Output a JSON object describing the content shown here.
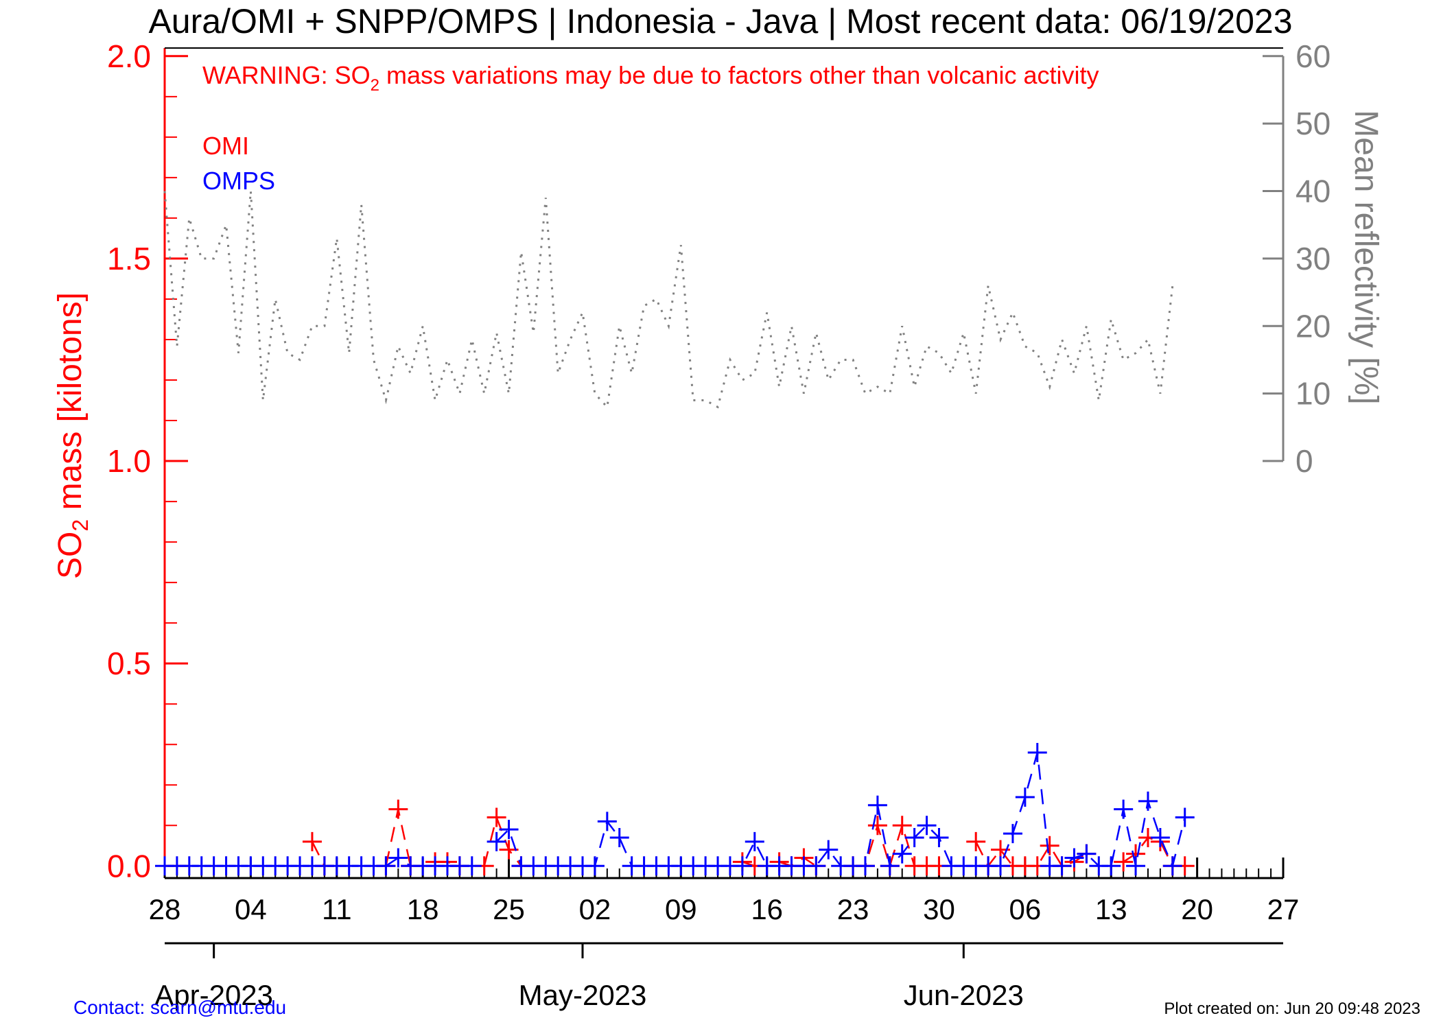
{
  "page": {
    "title": "Aura/OMI + SNPP/OMPS | Indonesia - Java | Most recent data: 06/19/2023",
    "warning_prefix": "WARNING: SO",
    "warning_sub": "2",
    "warning_suffix": " mass variations may be due to factors other than volcanic activity",
    "contact": "Contact: scarn@mtu.edu",
    "created": "Plot created on: Jun 20 09:48 2023"
  },
  "chart_data": {
    "type": "line",
    "xlim": [
      "2023-03-28",
      "2023-06-27"
    ],
    "x_ticks": [
      {
        "date": "2023-03-28",
        "label": "28"
      },
      {
        "date": "2023-04-04",
        "label": "04"
      },
      {
        "date": "2023-04-11",
        "label": "11"
      },
      {
        "date": "2023-04-18",
        "label": "18"
      },
      {
        "date": "2023-04-25",
        "label": "25"
      },
      {
        "date": "2023-05-02",
        "label": "02"
      },
      {
        "date": "2023-05-09",
        "label": "09"
      },
      {
        "date": "2023-05-16",
        "label": "16"
      },
      {
        "date": "2023-05-23",
        "label": "23"
      },
      {
        "date": "2023-05-30",
        "label": "30"
      },
      {
        "date": "2023-06-06",
        "label": "06"
      },
      {
        "date": "2023-06-13",
        "label": "13"
      },
      {
        "date": "2023-06-20",
        "label": "20"
      },
      {
        "date": "2023-06-27",
        "label": "27"
      }
    ],
    "months": [
      {
        "date": "2023-04-01",
        "label": "Apr-2023"
      },
      {
        "date": "2023-05-01",
        "label": "May-2023"
      },
      {
        "date": "2023-06-01",
        "label": "Jun-2023"
      }
    ],
    "y_left": {
      "label_prefix": "SO",
      "label_sub": "2",
      "label_suffix": " mass [kilotons]",
      "range": [
        -0.03,
        2.02
      ],
      "ticks": [
        "0.0",
        "0.5",
        "1.0",
        "1.5",
        "2.0"
      ],
      "tick_values": [
        0.0,
        0.5,
        1.0,
        1.5,
        2.0
      ],
      "minor_step": 0.1,
      "color": "#ff0000"
    },
    "y_right": {
      "label": "Mean reflectivity [%]",
      "range": [
        0,
        60
      ],
      "ticks": [
        "0",
        "10",
        "20",
        "30",
        "40",
        "50",
        "60"
      ],
      "tick_values": [
        0,
        10,
        20,
        30,
        40,
        50,
        60
      ],
      "spans_left_values": [
        1.0,
        2.0
      ],
      "color": "#808080"
    },
    "legend": [
      {
        "name": "OMI",
        "color": "#ff0000"
      },
      {
        "name": "OMPS",
        "color": "#0000ff"
      }
    ],
    "legend_position": "top-left",
    "series": [
      {
        "name": "OMI",
        "color": "#ff0000",
        "style": "dashed",
        "marker": "plus",
        "points": [
          [
            "2023-04-09",
            0.06
          ],
          [
            "2023-04-10",
            0.0
          ],
          [
            "2023-04-15",
            0.0
          ],
          [
            "2023-04-16",
            0.14
          ],
          [
            "2023-04-17",
            0.0
          ],
          [
            "2023-04-19",
            0.01
          ],
          [
            "2023-04-20",
            0.01
          ],
          [
            "2023-04-21",
            0.0
          ],
          [
            "2023-04-23",
            0.0
          ],
          [
            "2023-04-24",
            0.12
          ],
          [
            "2023-04-25",
            0.04
          ],
          [
            "2023-04-26",
            0.0
          ],
          [
            "2023-05-14",
            0.01
          ],
          [
            "2023-05-15",
            0.0
          ],
          [
            "2023-05-17",
            0.01
          ],
          [
            "2023-05-18",
            0.0
          ],
          [
            "2023-05-19",
            0.02
          ],
          [
            "2023-05-20",
            0.0
          ],
          [
            "2023-05-23",
            0.0
          ],
          [
            "2023-05-24",
            0.0
          ],
          [
            "2023-05-25",
            0.1
          ],
          [
            "2023-05-26",
            0.0
          ],
          [
            "2023-05-27",
            0.1
          ],
          [
            "2023-05-28",
            0.0
          ],
          [
            "2023-05-29",
            0.0
          ],
          [
            "2023-05-30",
            0.0
          ],
          [
            "2023-06-02",
            0.06
          ],
          [
            "2023-06-03",
            0.0
          ],
          [
            "2023-06-04",
            0.04
          ],
          [
            "2023-06-05",
            0.0
          ],
          [
            "2023-06-06",
            0.0
          ],
          [
            "2023-06-07",
            0.0
          ],
          [
            "2023-06-08",
            0.05
          ],
          [
            "2023-06-09",
            0.0
          ],
          [
            "2023-06-10",
            0.01
          ],
          [
            "2023-06-11",
            0.03
          ],
          [
            "2023-06-14",
            0.01
          ],
          [
            "2023-06-15",
            0.03
          ],
          [
            "2023-06-16",
            0.07
          ],
          [
            "2023-06-17",
            0.06
          ],
          [
            "2023-06-18",
            0.0
          ],
          [
            "2023-06-19",
            0.0
          ]
        ]
      },
      {
        "name": "OMPS",
        "color": "#0000ff",
        "style": "dashed",
        "marker": "plus",
        "points": [
          [
            "2023-03-28",
            0.0
          ],
          [
            "2023-03-29",
            0.0
          ],
          [
            "2023-03-30",
            0.0
          ],
          [
            "2023-03-31",
            0.0
          ],
          [
            "2023-04-01",
            0.0
          ],
          [
            "2023-04-02",
            0.0
          ],
          [
            "2023-04-03",
            0.0
          ],
          [
            "2023-04-04",
            0.0
          ],
          [
            "2023-04-05",
            0.0
          ],
          [
            "2023-04-06",
            0.0
          ],
          [
            "2023-04-07",
            0.0
          ],
          [
            "2023-04-08",
            0.0
          ],
          [
            "2023-04-09",
            0.0
          ],
          [
            "2023-04-10",
            0.0
          ],
          [
            "2023-04-11",
            0.0
          ],
          [
            "2023-04-12",
            0.0
          ],
          [
            "2023-04-13",
            0.0
          ],
          [
            "2023-04-14",
            0.0
          ],
          [
            "2023-04-15",
            0.0
          ],
          [
            "2023-04-16",
            0.02
          ],
          [
            "2023-04-17",
            0.0
          ],
          [
            "2023-04-18",
            0.0
          ],
          [
            "2023-04-19",
            0.0
          ],
          [
            "2023-04-20",
            0.0
          ],
          [
            "2023-04-21",
            0.0
          ],
          [
            "2023-04-22",
            0.0
          ],
          [
            "2023-04-24",
            0.06
          ],
          [
            "2023-04-25",
            0.09
          ],
          [
            "2023-04-26",
            0.0
          ],
          [
            "2023-04-27",
            0.0
          ],
          [
            "2023-04-28",
            0.0
          ],
          [
            "2023-04-29",
            0.0
          ],
          [
            "2023-04-30",
            0.0
          ],
          [
            "2023-05-01",
            0.0
          ],
          [
            "2023-05-02",
            0.0
          ],
          [
            "2023-05-03",
            0.11
          ],
          [
            "2023-05-04",
            0.07
          ],
          [
            "2023-05-05",
            0.0
          ],
          [
            "2023-05-06",
            0.0
          ],
          [
            "2023-05-07",
            0.0
          ],
          [
            "2023-05-08",
            0.0
          ],
          [
            "2023-05-09",
            0.0
          ],
          [
            "2023-05-10",
            0.0
          ],
          [
            "2023-05-11",
            0.0
          ],
          [
            "2023-05-12",
            0.0
          ],
          [
            "2023-05-13",
            0.0
          ],
          [
            "2023-05-14",
            0.0
          ],
          [
            "2023-05-15",
            0.06
          ],
          [
            "2023-05-16",
            0.0
          ],
          [
            "2023-05-17",
            0.0
          ],
          [
            "2023-05-18",
            0.0
          ],
          [
            "2023-05-19",
            0.0
          ],
          [
            "2023-05-20",
            0.0
          ],
          [
            "2023-05-21",
            0.04
          ],
          [
            "2023-05-22",
            0.0
          ],
          [
            "2023-05-23",
            0.0
          ],
          [
            "2023-05-24",
            0.0
          ],
          [
            "2023-05-25",
            0.15
          ],
          [
            "2023-05-26",
            0.0
          ],
          [
            "2023-05-27",
            0.03
          ],
          [
            "2023-05-28",
            0.07
          ],
          [
            "2023-05-29",
            0.1
          ],
          [
            "2023-05-30",
            0.07
          ],
          [
            "2023-05-31",
            0.0
          ],
          [
            "2023-06-01",
            0.0
          ],
          [
            "2023-06-02",
            0.0
          ],
          [
            "2023-06-03",
            0.0
          ],
          [
            "2023-06-04",
            0.0
          ],
          [
            "2023-06-05",
            0.08
          ],
          [
            "2023-06-06",
            0.17
          ],
          [
            "2023-06-07",
            0.28
          ],
          [
            "2023-06-08",
            0.0
          ],
          [
            "2023-06-09",
            0.0
          ],
          [
            "2023-06-10",
            0.02
          ],
          [
            "2023-06-11",
            0.03
          ],
          [
            "2023-06-12",
            0.0
          ],
          [
            "2023-06-13",
            0.0
          ],
          [
            "2023-06-14",
            0.14
          ],
          [
            "2023-06-15",
            0.0
          ],
          [
            "2023-06-16",
            0.16
          ],
          [
            "2023-06-17",
            0.07
          ],
          [
            "2023-06-18",
            0.0
          ],
          [
            "2023-06-19",
            0.12
          ]
        ]
      },
      {
        "name": "",
        "color": "#808080",
        "style": "dotted",
        "axis": "right",
        "points": [
          [
            "2023-03-28",
            40
          ],
          [
            "2023-03-29",
            17
          ],
          [
            "2023-03-30",
            36
          ],
          [
            "2023-03-31",
            30
          ],
          [
            "2023-04-01",
            30
          ],
          [
            "2023-04-02",
            35
          ],
          [
            "2023-04-03",
            16
          ],
          [
            "2023-04-04",
            40
          ],
          [
            "2023-04-05",
            9
          ],
          [
            "2023-04-06",
            24
          ],
          [
            "2023-04-07",
            16
          ],
          [
            "2023-04-08",
            15
          ],
          [
            "2023-04-09",
            20
          ],
          [
            "2023-04-10",
            20
          ],
          [
            "2023-04-11",
            33
          ],
          [
            "2023-04-12",
            16
          ],
          [
            "2023-04-13",
            38
          ],
          [
            "2023-04-14",
            15
          ],
          [
            "2023-04-15",
            9
          ],
          [
            "2023-04-16",
            17
          ],
          [
            "2023-04-17",
            13
          ],
          [
            "2023-04-18",
            20
          ],
          [
            "2023-04-19",
            9
          ],
          [
            "2023-04-20",
            15
          ],
          [
            "2023-04-21",
            10
          ],
          [
            "2023-04-22",
            18
          ],
          [
            "2023-04-23",
            10
          ],
          [
            "2023-04-24",
            19
          ],
          [
            "2023-04-25",
            10
          ],
          [
            "2023-04-26",
            31
          ],
          [
            "2023-04-27",
            19
          ],
          [
            "2023-04-28",
            39
          ],
          [
            "2023-04-29",
            13
          ],
          [
            "2023-04-30",
            18
          ],
          [
            "2023-05-01",
            22
          ],
          [
            "2023-05-02",
            10
          ],
          [
            "2023-05-03",
            8
          ],
          [
            "2023-05-04",
            20
          ],
          [
            "2023-05-05",
            13
          ],
          [
            "2023-05-06",
            23
          ],
          [
            "2023-05-07",
            24
          ],
          [
            "2023-05-08",
            20
          ],
          [
            "2023-05-09",
            32
          ],
          [
            "2023-05-10",
            9
          ],
          [
            "2023-05-11",
            9
          ],
          [
            "2023-05-12",
            8
          ],
          [
            "2023-05-13",
            15
          ],
          [
            "2023-05-14",
            12
          ],
          [
            "2023-05-15",
            13
          ],
          [
            "2023-05-16",
            22
          ],
          [
            "2023-05-17",
            11
          ],
          [
            "2023-05-18",
            20
          ],
          [
            "2023-05-19",
            10
          ],
          [
            "2023-05-20",
            19
          ],
          [
            "2023-05-21",
            12
          ],
          [
            "2023-05-22",
            15
          ],
          [
            "2023-05-23",
            15
          ],
          [
            "2023-05-24",
            10
          ],
          [
            "2023-05-25",
            11
          ],
          [
            "2023-05-26",
            10
          ],
          [
            "2023-05-27",
            20
          ],
          [
            "2023-05-28",
            11
          ],
          [
            "2023-05-29",
            17
          ],
          [
            "2023-05-30",
            16
          ],
          [
            "2023-05-31",
            13
          ],
          [
            "2023-06-01",
            19
          ],
          [
            "2023-06-02",
            10
          ],
          [
            "2023-06-03",
            26
          ],
          [
            "2023-06-04",
            18
          ],
          [
            "2023-06-05",
            22
          ],
          [
            "2023-06-06",
            17
          ],
          [
            "2023-06-07",
            16
          ],
          [
            "2023-06-08",
            11
          ],
          [
            "2023-06-09",
            18
          ],
          [
            "2023-06-10",
            13
          ],
          [
            "2023-06-11",
            20
          ],
          [
            "2023-06-12",
            9
          ],
          [
            "2023-06-13",
            21
          ],
          [
            "2023-06-14",
            15
          ],
          [
            "2023-06-15",
            16
          ],
          [
            "2023-06-16",
            18
          ],
          [
            "2023-06-17",
            10
          ],
          [
            "2023-06-18",
            26
          ]
        ]
      }
    ]
  }
}
